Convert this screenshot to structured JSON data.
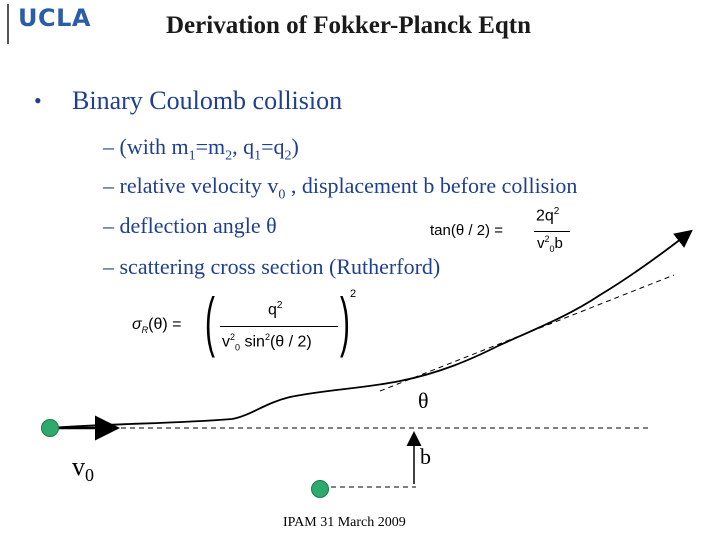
{
  "header": {
    "logo": "UCLA",
    "title": "Derivation of Fokker-Planck Eqtn"
  },
  "main": {
    "bullet": "Binary Coulomb collision",
    "sub_items": [
      {
        "prefix": "– (with m",
        "s1": "1",
        "mid1": "=m",
        "s2": "2",
        "mid2": ", q",
        "s3": "1",
        "mid3": "=q",
        "s4": "2",
        "end": ")"
      },
      {
        "text": "– relative velocity v",
        "sub": "0",
        "tail": " , displacement b before collision"
      },
      {
        "text": "– deflection angle θ"
      },
      {
        "text": "– scattering cross section (Rutherford)"
      }
    ]
  },
  "diagram": {
    "theta_label": "θ",
    "b_label": "b",
    "v_label": "v",
    "v_sub": "0"
  },
  "formulas": {
    "tan_lhs": "tan(θ / 2) =",
    "tan_num": "2q",
    "tan_num_exp": "2",
    "tan_den": "v",
    "tan_den_sub": "0",
    "tan_den_exp": "2",
    "tan_den_b": "b",
    "sigma_lhs": "σ",
    "sigma_sub": "R",
    "sigma_arg": "(θ) =",
    "sigma_num": "q",
    "sigma_num_exp": "2",
    "sigma_den_v": "v",
    "sigma_den_v_sub": "0",
    "sigma_den_v_exp": "2",
    "sigma_den_sin": "sin",
    "sigma_den_sin_exp": "2",
    "sigma_den_arg": "(θ / 2)",
    "sigma_outer_exp": "2"
  },
  "footer": {
    "text": "IPAM 31 March 2009"
  },
  "colors": {
    "bullet": "#1f3f8f",
    "ball": "#2eaa6e",
    "logo": "#2a5ca8"
  }
}
